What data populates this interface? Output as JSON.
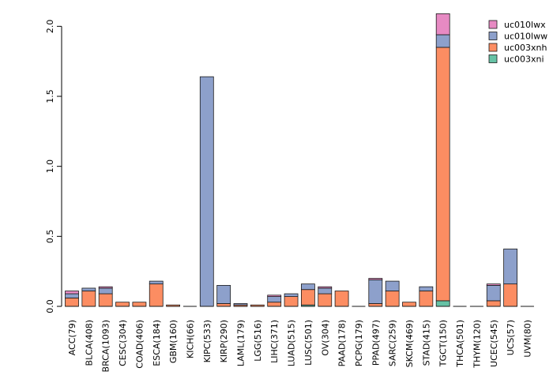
{
  "chart_data": {
    "type": "bar",
    "stacked": true,
    "title": "",
    "xlabel": "",
    "ylabel": "",
    "ylim": [
      0,
      2.1
    ],
    "yticks": [
      0.0,
      0.5,
      1.0,
      1.5,
      2.0
    ],
    "ytick_labels": [
      "0.0",
      "0.5",
      "1.0",
      "1.5",
      "2.0"
    ],
    "legend_position": "top-right",
    "categories": [
      "ACC(79)",
      "BLCA(408)",
      "BRCA(1093)",
      "CESC(304)",
      "COAD(406)",
      "ESCA(184)",
      "GBM(160)",
      "KICH(66)",
      "KIPC(533)",
      "KIRP(290)",
      "LAML(179)",
      "LGG(516)",
      "LIHC(371)",
      "LUAD(515)",
      "LUSC(501)",
      "OV(304)",
      "PAAD(178)",
      "PCPG(179)",
      "PPAD(497)",
      "SARC(259)",
      "SKCM(469)",
      "STAD(415)",
      "TGCT(150)",
      "THCA(501)",
      "THYM(120)",
      "UCEC(545)",
      "UCS(57)",
      "UVM(80)"
    ],
    "series": [
      {
        "name": "uc003xni",
        "color": "#66c2a5",
        "values": [
          0,
          0,
          0,
          0,
          0,
          0,
          0,
          0,
          0,
          0,
          0,
          0,
          0,
          0,
          0.01,
          0,
          0,
          0,
          0,
          0,
          0,
          0,
          0.04,
          0,
          0,
          0,
          0,
          0
        ]
      },
      {
        "name": "uc003xnh",
        "color": "#fc8d62",
        "values": [
          0.06,
          0.11,
          0.09,
          0.03,
          0.03,
          0.16,
          0.01,
          0,
          0,
          0.02,
          0.01,
          0.01,
          0.03,
          0.07,
          0.11,
          0.09,
          0.11,
          0,
          0.02,
          0.11,
          0.03,
          0.11,
          1.81,
          0,
          0,
          0.04,
          0.16,
          0
        ]
      },
      {
        "name": "uc010lww",
        "color": "#8da0cb",
        "values": [
          0.03,
          0.02,
          0.04,
          0,
          0,
          0.02,
          0,
          0,
          1.64,
          0.13,
          0.01,
          0,
          0.04,
          0.02,
          0.04,
          0.04,
          0,
          0,
          0.17,
          0.07,
          0,
          0.03,
          0.09,
          0,
          0,
          0.11,
          0.25,
          0
        ]
      },
      {
        "name": "uc010lwx",
        "color": "#e78ac3",
        "values": [
          0.02,
          0,
          0.01,
          0,
          0,
          0,
          0,
          0,
          0,
          0,
          0,
          0,
          0.01,
          0,
          0,
          0.01,
          0,
          0,
          0.01,
          0,
          0,
          0,
          0.15,
          0,
          0,
          0.01,
          0,
          0
        ]
      }
    ],
    "legend_order": [
      "uc010lwx",
      "uc010lww",
      "uc003xnh",
      "uc003xni"
    ]
  }
}
